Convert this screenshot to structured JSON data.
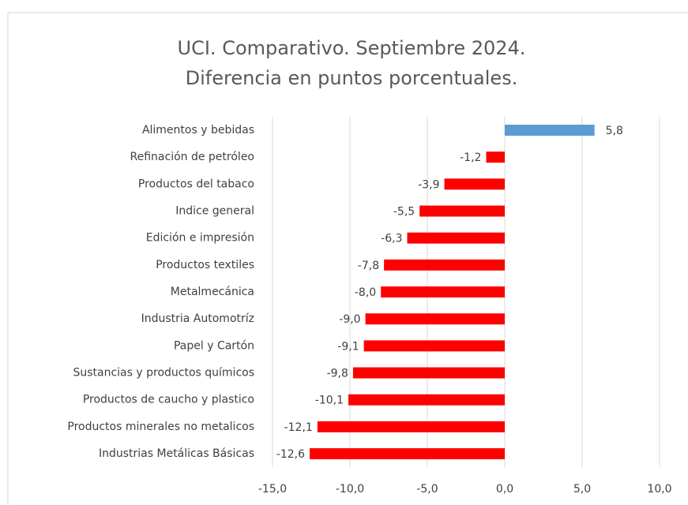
{
  "chart_data": {
    "type": "barh",
    "title": [
      "UCI. Comparativo. Septiembre 2024.",
      "Diferencia en puntos porcentuales."
    ],
    "categories": [
      "Alimentos y bebidas",
      "Refinación de petróleo",
      "Productos del tabaco",
      "Indice general",
      "Edición e impresión",
      "Productos textiles",
      "Metalmecánica",
      "Industria Automotríz",
      "Papel y Cartón",
      "Sustancias y productos químicos",
      "Productos de caucho y plastico",
      "Productos minerales no metalicos",
      "Industrias Metálicas Básicas"
    ],
    "values": [
      5.8,
      -1.2,
      -3.9,
      -5.5,
      -6.3,
      -7.8,
      -8.0,
      -9.0,
      -9.1,
      -9.8,
      -10.1,
      -12.1,
      -12.6
    ],
    "value_labels": [
      "5,8",
      "-1,2",
      "-3,9",
      "-5,5",
      "-6,3",
      "-7,8",
      "-8,0",
      "-9,0",
      "-9,1",
      "-9,8",
      "-10,1",
      "-12,1",
      "-12,6"
    ],
    "positive_color": "#5b9bd5",
    "negative_color": "#ff0000",
    "xlim": [
      -15,
      10
    ],
    "xticks": [
      {
        "value": -15,
        "label": "-15,0"
      },
      {
        "value": -10,
        "label": "-10,0"
      },
      {
        "value": -5,
        "label": "-5,0"
      },
      {
        "value": 0,
        "label": "0,0"
      },
      {
        "value": 5,
        "label": "5,0"
      },
      {
        "value": 10,
        "label": "10,0"
      }
    ],
    "grid": true
  }
}
